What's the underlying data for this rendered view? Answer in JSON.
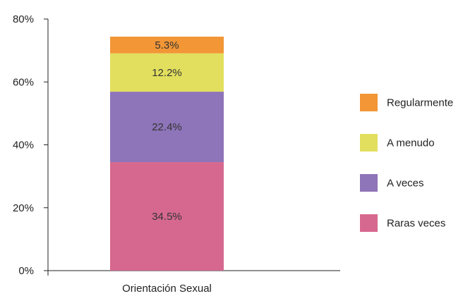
{
  "chart_data": {
    "type": "bar",
    "stacked": true,
    "categories": [
      "Orientación Sexual"
    ],
    "series": [
      {
        "name": "Raras veces",
        "values": [
          34.5
        ],
        "label": "34.5%",
        "color": "#d6688f"
      },
      {
        "name": "A veces",
        "values": [
          22.4
        ],
        "label": "22.4%",
        "color": "#8e74b8"
      },
      {
        "name": "A menudo",
        "values": [
          12.2
        ],
        "label": "12.2%",
        "color": "#e2df5e"
      },
      {
        "name": "Regularmente",
        "values": [
          5.3
        ],
        "label": "5.3%",
        "color": "#f29636"
      }
    ],
    "legend_order": [
      "Regularmente",
      "A menudo",
      "A veces",
      "Raras veces"
    ],
    "yticks": [
      "0%",
      "20%",
      "40%",
      "60%",
      "80%"
    ],
    "ylim": [
      0,
      80
    ],
    "grid": false,
    "legend_position": "right"
  }
}
